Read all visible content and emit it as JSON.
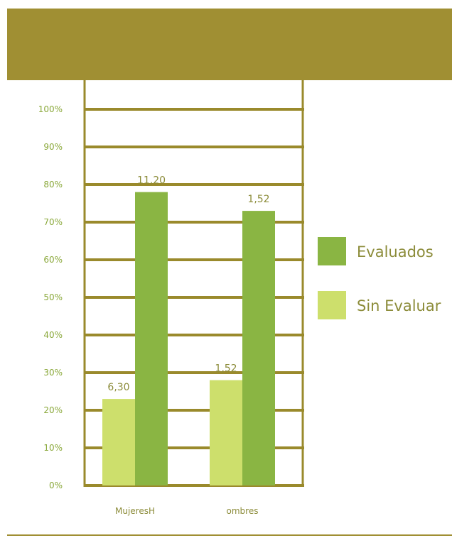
{
  "colors": {
    "header": "#a08f33",
    "frame": "#9a8a2c",
    "tick_text": "#8aa83a",
    "label_text": "#8c8c3a",
    "series_evaluados": "#8ab543",
    "series_sin_evaluar": "#cddf6c"
  },
  "chart_data": {
    "type": "bar",
    "categories": [
      "MujeresH",
      "ombres"
    ],
    "series": [
      {
        "name": "Evaluados",
        "values": [
          78,
          73
        ],
        "labels": [
          "11,20",
          "1,52"
        ]
      },
      {
        "name": "Sin Evaluar",
        "values": [
          23,
          28
        ],
        "labels": [
          "6,30",
          "1,52"
        ]
      }
    ],
    "yticks": [
      "0%",
      "10%",
      "20%",
      "30%",
      "40%",
      "50%",
      "60%",
      "70%",
      "80%",
      "90%",
      "100%"
    ],
    "ylim": [
      0,
      100
    ],
    "grid": true,
    "legend": "right",
    "title": "",
    "xlabel": "",
    "ylabel": ""
  }
}
